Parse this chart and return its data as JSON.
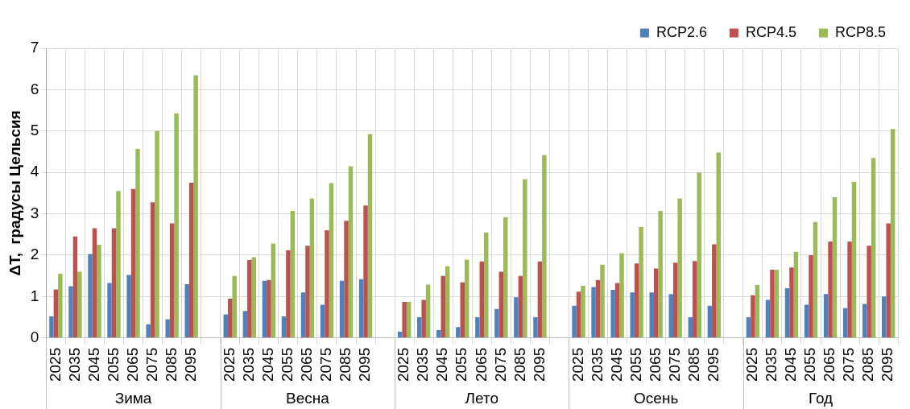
{
  "chart_data": {
    "type": "bar",
    "ylabel": "ΔT,  градусы Цельсия",
    "categories": [
      "2025",
      "2035",
      "2045",
      "2055",
      "2065",
      "2075",
      "2085",
      "2095",
      null,
      "2025",
      "2035",
      "2045",
      "2055",
      "2065",
      "2075",
      "2085",
      "2095",
      null,
      "2025",
      "2035",
      "2045",
      "2055",
      "2065",
      "2075",
      "2085",
      "2095",
      null,
      "2025",
      "2035",
      "2045",
      "2055",
      "2065",
      "2075",
      "2085",
      "2095",
      null,
      "2025",
      "2035",
      "2045",
      "2055",
      "2065",
      "2075",
      "2085",
      "2095"
    ],
    "series": [
      {
        "name": "RCP2.6",
        "color": "#4f81bd",
        "values": [
          0.52,
          1.25,
          2.03,
          1.33,
          1.52,
          0.33,
          0.45,
          1.3,
          null,
          0.57,
          0.65,
          1.38,
          0.52,
          1.1,
          0.8,
          1.38,
          1.42,
          null,
          0.15,
          0.5,
          0.19,
          0.26,
          0.5,
          0.7,
          0.98,
          0.5,
          null,
          0.78,
          1.23,
          1.16,
          1.1,
          1.1,
          1.06,
          0.5,
          0.78,
          null,
          0.5,
          0.92,
          1.2,
          0.8,
          1.06,
          0.72,
          0.82,
          1.0
        ]
      },
      {
        "name": "RCP4.5",
        "color": "#c0504d",
        "values": [
          1.17,
          2.45,
          2.65,
          2.65,
          3.6,
          3.28,
          2.77,
          3.75,
          null,
          0.95,
          1.88,
          1.4,
          2.12,
          2.23,
          2.6,
          2.83,
          3.2,
          null,
          0.87,
          0.92,
          1.5,
          1.34,
          1.85,
          1.6,
          1.5,
          1.85,
          null,
          1.12,
          1.4,
          1.33,
          1.8,
          1.68,
          1.82,
          1.86,
          2.26,
          null,
          1.03,
          1.65,
          1.7,
          2.0,
          2.33,
          2.33,
          2.23,
          2.77
        ]
      },
      {
        "name": "RCP8.5",
        "color": "#9bbb59",
        "values": [
          1.55,
          1.6,
          2.25,
          3.55,
          4.57,
          5.0,
          5.43,
          6.35,
          null,
          1.5,
          1.95,
          2.28,
          3.07,
          3.37,
          3.74,
          4.15,
          4.93,
          null,
          0.87,
          1.29,
          1.73,
          1.89,
          2.55,
          2.92,
          3.84,
          4.42,
          null,
          1.26,
          1.77,
          2.05,
          2.68,
          3.07,
          3.37,
          4.0,
          4.48,
          null,
          1.28,
          1.65,
          2.08,
          2.8,
          3.4,
          3.77,
          4.35,
          5.05
        ]
      }
    ],
    "annotations": [
      "Зима",
      "Весна",
      "Лето",
      "Осень",
      "Год"
    ],
    "ylim": [
      0,
      7
    ],
    "yticks": [
      0,
      1,
      2,
      3,
      4,
      5,
      6,
      7
    ],
    "grid": true,
    "legend": "top right"
  }
}
